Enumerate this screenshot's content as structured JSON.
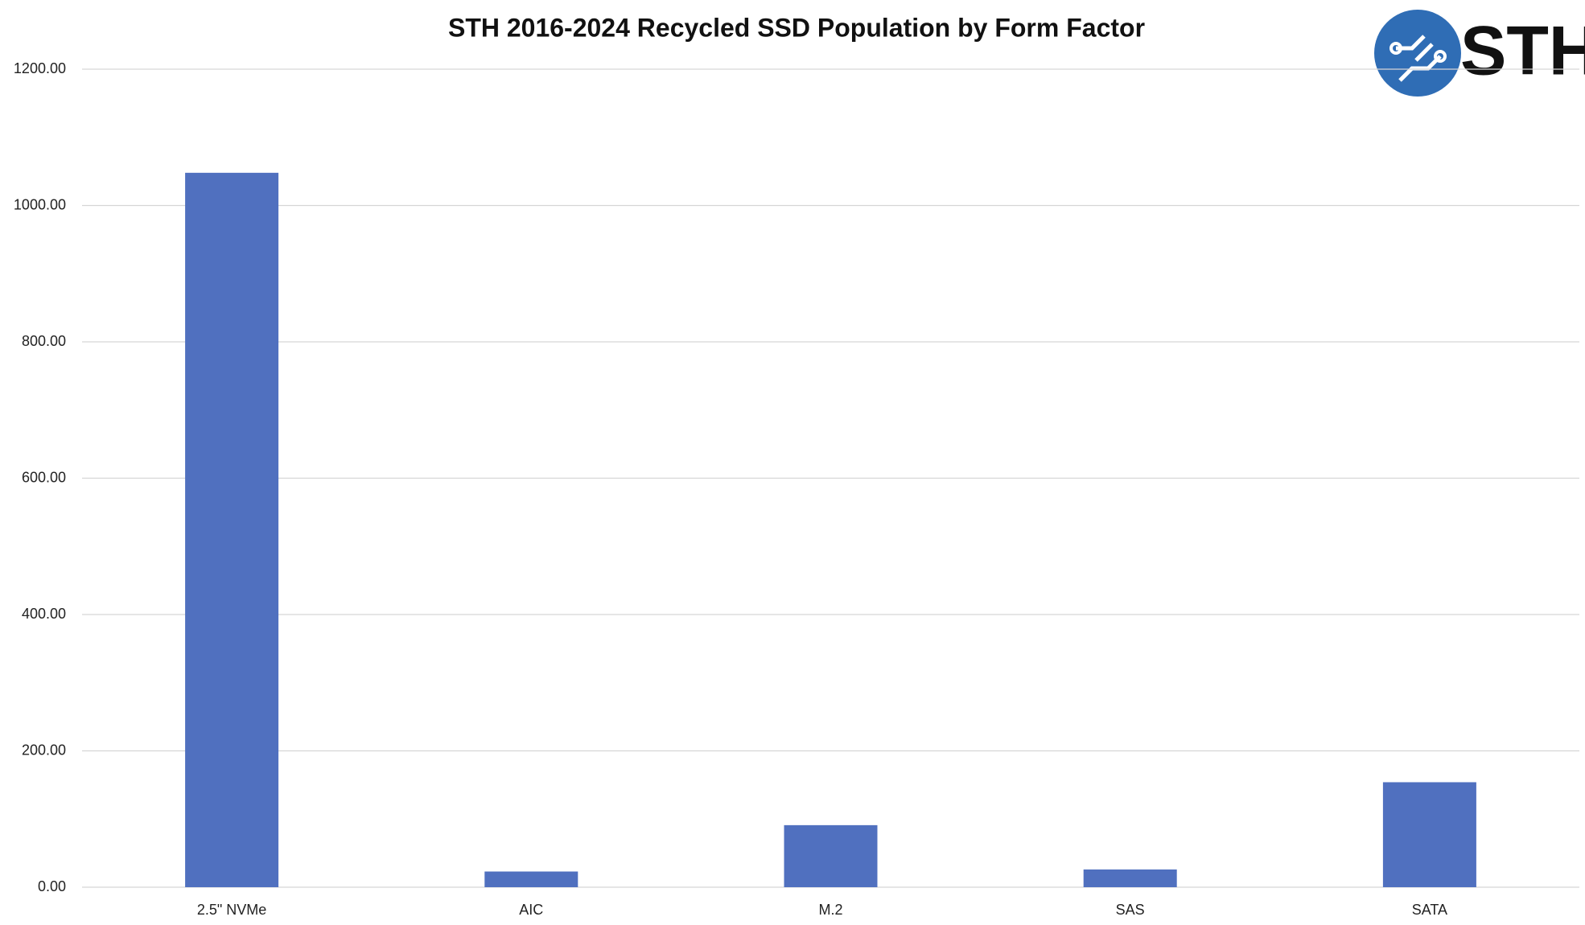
{
  "chart_data": {
    "type": "bar",
    "title": "STH 2016-2024 Recycled SSD Population by Form Factor",
    "logo": "STH",
    "categories": [
      "2.5\" NVMe",
      "AIC",
      "M.2",
      "SAS",
      "SATA"
    ],
    "values": [
      1048,
      23,
      91,
      26,
      154
    ],
    "color": "#5070bf",
    "ylim": [
      0,
      1200
    ],
    "yticks": [
      {
        "value": 0,
        "label": "0.00"
      },
      {
        "value": 200,
        "label": "200.00"
      },
      {
        "value": 400,
        "label": "400.00"
      },
      {
        "value": 600,
        "label": "600.00"
      },
      {
        "value": 800,
        "label": "800.00"
      },
      {
        "value": 1000,
        "label": "1000.00"
      },
      {
        "value": 1200,
        "label": "1200.00"
      }
    ],
    "grid": true
  }
}
